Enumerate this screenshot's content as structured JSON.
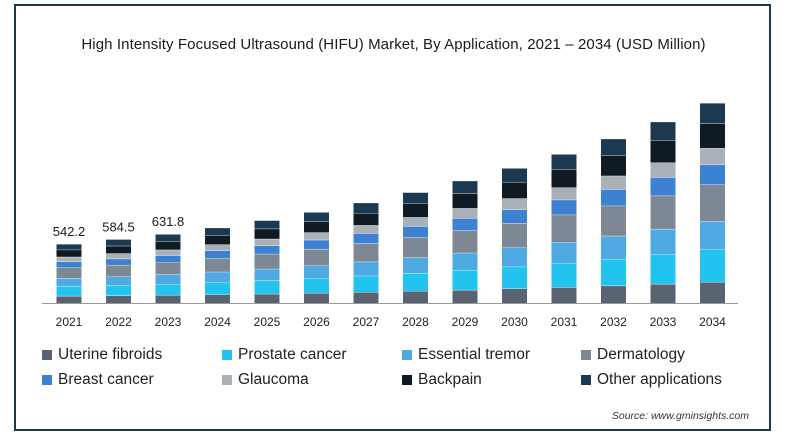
{
  "chart_data": {
    "type": "bar",
    "stacked": true,
    "title": "High Intensity Focused Ultrasound (HIFU) Market, By Application, 2021 – 2034 (USD Million)",
    "xlabel": "",
    "ylabel": "",
    "categories": [
      "2021",
      "2022",
      "2023",
      "2024",
      "2025",
      "2026",
      "2027",
      "2028",
      "2029",
      "2030",
      "2031",
      "2032",
      "2033",
      "2034"
    ],
    "totals_labels": [
      "542.2",
      "584.5",
      "631.8",
      "",
      "",
      "",
      "",
      "",
      "",
      "",
      "",
      "",
      "",
      ""
    ],
    "series": [
      {
        "name": "Uterine fibroids",
        "color": "#5a6371",
        "values": [
          65,
          68,
          72,
          78,
          84,
          92,
          101,
          110,
          120,
          132,
          145,
          159,
          175,
          193
        ]
      },
      {
        "name": "Prostate cancer",
        "color": "#22c4ef",
        "values": [
          87,
          93,
          101,
          111,
          122,
          135,
          149,
          165,
          182,
          201,
          222,
          245,
          270,
          298
        ]
      },
      {
        "name": "Essential tremor",
        "color": "#4fa9e3",
        "values": [
          76,
          82,
          88,
          97,
          107,
          117,
          129,
          143,
          158,
          175,
          193,
          213,
          235,
          259
        ]
      },
      {
        "name": "Dermatology",
        "color": "#7d8894",
        "values": [
          98,
          106,
          114,
          126,
          138,
          152,
          168,
          185,
          205,
          226,
          250,
          276,
          305,
          337
        ]
      },
      {
        "name": "Breast cancer",
        "color": "#3d82d2",
        "values": [
          54,
          58,
          63,
          69,
          76,
          84,
          92,
          102,
          113,
          125,
          138,
          152,
          168,
          185
        ]
      },
      {
        "name": "Glaucoma",
        "color": "#a9b0b6",
        "values": [
          44,
          48,
          51,
          56,
          62,
          68,
          75,
          83,
          92,
          101,
          112,
          123,
          136,
          150
        ]
      },
      {
        "name": "Backpain",
        "color": "#0f1a22",
        "values": [
          65,
          70,
          77,
          84,
          93,
          102,
          112,
          124,
          137,
          151,
          167,
          185,
          204,
          225
        ]
      },
      {
        "name": "Other applications",
        "color": "#1b3a52",
        "values": [
          53,
          60,
          66,
          70,
          77,
          85,
          94,
          104,
          115,
          127,
          140,
          155,
          171,
          189
        ]
      }
    ],
    "legend_position": "bottom",
    "grid": false
  },
  "source": "Source: www.gminsights.com"
}
